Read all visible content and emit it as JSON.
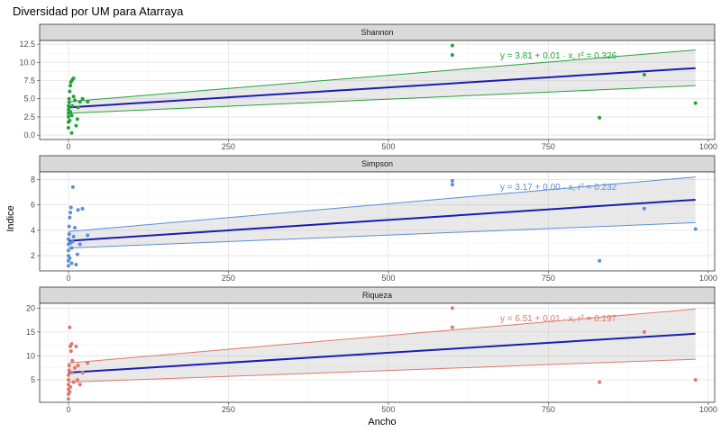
{
  "chart_data": {
    "type": "scatter",
    "title": "Diversidad por UM para Atarraya",
    "xlabel": "Ancho",
    "ylabel": "Indice",
    "xlim": [
      -45,
      1010
    ],
    "xticks": [
      "0",
      "250",
      "500",
      "750",
      "1000"
    ],
    "xtick_values": [
      0,
      250,
      500,
      750,
      1000
    ],
    "grid": true,
    "panels": [
      {
        "strip": "Shannon",
        "color": "#22a33a",
        "ylim": [
          -0.6,
          13.0
        ],
        "yticks": [
          "0.0",
          "2.5",
          "5.0",
          "7.5",
          "10.0",
          "12.5"
        ],
        "ytick_values": [
          0,
          2.5,
          5,
          7.5,
          10,
          12.5
        ],
        "fit": {
          "intercept": 3.81,
          "slope": 0.0055
        },
        "band_lower": [
          [
            0,
            3.0
          ],
          [
            980,
            6.8
          ]
        ],
        "band_upper": [
          [
            0,
            4.6
          ],
          [
            980,
            11.7
          ]
        ],
        "equation": "y = 3.81 + 0.01 · x,  r² = 0.326",
        "points": [
          [
            0,
            1.0
          ],
          [
            0,
            1.8
          ],
          [
            0,
            2.5
          ],
          [
            0,
            3.0
          ],
          [
            0,
            3.5
          ],
          [
            0,
            4.0
          ],
          [
            1,
            4.5
          ],
          [
            1,
            5.0
          ],
          [
            2,
            2.0
          ],
          [
            2,
            6.0
          ],
          [
            3,
            3.2
          ],
          [
            3,
            6.8
          ],
          [
            4,
            7.3
          ],
          [
            5,
            0.3
          ],
          [
            5,
            2.7
          ],
          [
            6,
            4.0
          ],
          [
            6,
            7.6
          ],
          [
            8,
            7.8
          ],
          [
            8,
            5.3
          ],
          [
            10,
            4.8
          ],
          [
            12,
            1.3
          ],
          [
            14,
            2.2
          ],
          [
            15,
            3.8
          ],
          [
            18,
            4.6
          ],
          [
            22,
            5.0
          ],
          [
            30,
            4.6
          ],
          [
            600,
            12.3
          ],
          [
            600,
            11.0
          ],
          [
            830,
            2.4
          ],
          [
            900,
            8.3
          ],
          [
            980,
            4.4
          ]
        ]
      },
      {
        "strip": "Simpson",
        "color": "#5a8fd6",
        "ylim": [
          0.8,
          8.6
        ],
        "yticks": [
          "2",
          "4",
          "6",
          "8"
        ],
        "ytick_values": [
          2,
          4,
          6,
          8
        ],
        "fit": {
          "intercept": 3.17,
          "slope": 0.0033
        },
        "band_lower": [
          [
            0,
            2.6
          ],
          [
            980,
            4.6
          ]
        ],
        "band_upper": [
          [
            0,
            3.9
          ],
          [
            980,
            8.2
          ]
        ],
        "equation": "y = 3.17 + 0.00 · x,  r² = 0.232",
        "points": [
          [
            0,
            1.2
          ],
          [
            0,
            1.6
          ],
          [
            0,
            2.0
          ],
          [
            0,
            2.4
          ],
          [
            0,
            2.9
          ],
          [
            0,
            3.3
          ],
          [
            1,
            3.7
          ],
          [
            1,
            4.3
          ],
          [
            2,
            1.8
          ],
          [
            2,
            5.0
          ],
          [
            3,
            3.0
          ],
          [
            3,
            5.4
          ],
          [
            4,
            5.8
          ],
          [
            5,
            1.4
          ],
          [
            5,
            2.6
          ],
          [
            6,
            3.1
          ],
          [
            7,
            7.4
          ],
          [
            8,
            3.5
          ],
          [
            10,
            4.2
          ],
          [
            12,
            1.3
          ],
          [
            14,
            2.1
          ],
          [
            15,
            5.6
          ],
          [
            18,
            2.9
          ],
          [
            22,
            5.7
          ],
          [
            30,
            3.6
          ],
          [
            600,
            7.9
          ],
          [
            600,
            7.6
          ],
          [
            830,
            1.6
          ],
          [
            900,
            5.7
          ],
          [
            980,
            4.1
          ]
        ]
      },
      {
        "strip": "Riqueza",
        "color": "#e0776a",
        "ylim": [
          0.3,
          21.0
        ],
        "yticks": [
          "5",
          "10",
          "15",
          "20"
        ],
        "ytick_values": [
          5,
          10,
          15,
          20
        ],
        "fit": {
          "intercept": 6.51,
          "slope": 0.0083
        },
        "band_lower": [
          [
            0,
            4.5
          ],
          [
            980,
            9.3
          ]
        ],
        "band_upper": [
          [
            0,
            8.5
          ],
          [
            980,
            19.8
          ]
        ],
        "equation": "y = 6.51 + 0.01 · x,  r² = 0.197",
        "points": [
          [
            0,
            1.0
          ],
          [
            0,
            2.0
          ],
          [
            0,
            3.0
          ],
          [
            0,
            4.0
          ],
          [
            0,
            5.0
          ],
          [
            0,
            6.0
          ],
          [
            1,
            7.0
          ],
          [
            1,
            8.0
          ],
          [
            2,
            16.0
          ],
          [
            2,
            2.5
          ],
          [
            3,
            12.0
          ],
          [
            3,
            3.5
          ],
          [
            4,
            11.0
          ],
          [
            5,
            12.5
          ],
          [
            5,
            6.5
          ],
          [
            6,
            9.0
          ],
          [
            8,
            4.5
          ],
          [
            10,
            7.5
          ],
          [
            12,
            12.0
          ],
          [
            14,
            5.0
          ],
          [
            15,
            8.0
          ],
          [
            18,
            4.0
          ],
          [
            22,
            6.5
          ],
          [
            30,
            8.5
          ],
          [
            600,
            20.0
          ],
          [
            600,
            16.0
          ],
          [
            830,
            4.5
          ],
          [
            900,
            15.0
          ],
          [
            980,
            5.0
          ]
        ]
      }
    ]
  }
}
